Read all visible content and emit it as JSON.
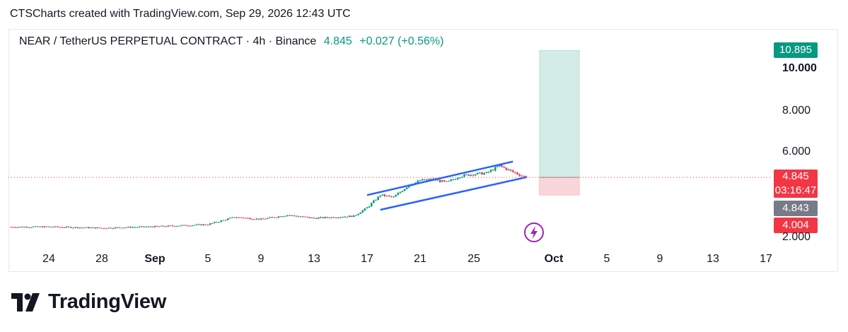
{
  "caption": "CTSCharts created with TradingView.com, Sep 29, 2026 12:43 UTC",
  "header": {
    "symbol": "NEAR / TetherUS PERPETUAL CONTRACT · 4h · Binance",
    "price": "4.845",
    "change": "+0.027 (+0.56%)"
  },
  "price_tags": {
    "target": "10.895",
    "last_price": "4.845",
    "countdown": "03:16:47",
    "gray": "4.843",
    "stop": "4.004"
  },
  "y_labels": [
    "10.000",
    "8.000",
    "6.000",
    "2.000"
  ],
  "x_labels": [
    "24",
    "28",
    "Sep",
    "5",
    "9",
    "13",
    "17",
    "21",
    "25",
    "Oct",
    "5",
    "9",
    "13",
    "17"
  ],
  "logo_text": "TradingView",
  "colors": {
    "up": "#089981",
    "down": "#f23645",
    "channel": "#2962ff",
    "profit_zone": "#d3ece6",
    "loss_zone": "#fad6da",
    "marker": "#9c27b0"
  },
  "chart_data": {
    "type": "candlestick",
    "symbol": "NEAR / TetherUS PERPETUAL CONTRACT",
    "interval": "4h",
    "exchange": "Binance",
    "y_range": [
      1.6,
      11.2
    ],
    "x_range": [
      "2026-08-21",
      "2026-10-17"
    ],
    "last_price": 4.845,
    "close_series": [
      {
        "date": "2026-08-21",
        "close": 2.48
      },
      {
        "date": "2026-08-24",
        "close": 2.49
      },
      {
        "date": "2026-08-28",
        "close": 2.43
      },
      {
        "date": "2026-09-01",
        "close": 2.5
      },
      {
        "date": "2026-09-05",
        "close": 2.6
      },
      {
        "date": "2026-09-07",
        "close": 2.95
      },
      {
        "date": "2026-09-09",
        "close": 2.85
      },
      {
        "date": "2026-09-11",
        "close": 3.05
      },
      {
        "date": "2026-09-13",
        "close": 2.9
      },
      {
        "date": "2026-09-16",
        "close": 3.0
      },
      {
        "date": "2026-09-17",
        "close": 3.4
      },
      {
        "date": "2026-09-18",
        "close": 4.0
      },
      {
        "date": "2026-09-19",
        "close": 3.9
      },
      {
        "date": "2026-09-20",
        "close": 4.4
      },
      {
        "date": "2026-09-21",
        "close": 4.7
      },
      {
        "date": "2026-09-22",
        "close": 4.75
      },
      {
        "date": "2026-09-23",
        "close": 4.6
      },
      {
        "date": "2026-09-24",
        "close": 4.9
      },
      {
        "date": "2026-09-25",
        "close": 5.0
      },
      {
        "date": "2026-09-26",
        "close": 5.05
      },
      {
        "date": "2026-09-27",
        "close": 5.4
      },
      {
        "date": "2026-09-28",
        "close": 5.1
      },
      {
        "date": "2026-09-29",
        "close": 4.845
      }
    ],
    "channel": {
      "upper": [
        {
          "date": "2026-09-17",
          "value": 4.0
        },
        {
          "date": "2026-09-28",
          "value": 5.6
        }
      ],
      "lower": [
        {
          "date": "2026-09-18",
          "value": 3.3
        },
        {
          "date": "2026-09-29",
          "value": 4.85
        }
      ]
    },
    "long_position": {
      "entry": 4.845,
      "target": 10.895,
      "stop": 4.004,
      "start": "2026-09-30",
      "end": "2026-10-03"
    }
  }
}
